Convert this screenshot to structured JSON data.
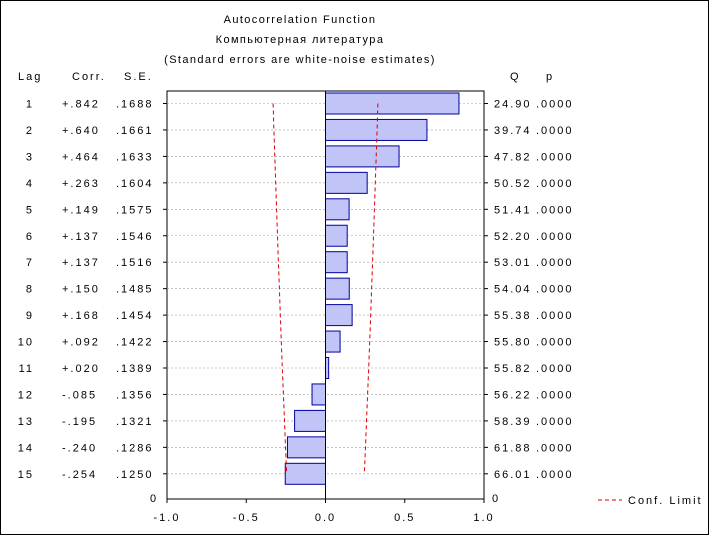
{
  "chart_data": {
    "type": "bar",
    "orientation": "horizontal",
    "title": "Autocorrelation Function",
    "subtitle": "Компьютерная литература",
    "note": "(Standard errors are white-noise estimates)",
    "headers": {
      "lag": "Lag",
      "corr": "Corr.",
      "se": "S.E.",
      "q": "Q",
      "p": "p"
    },
    "rows": [
      {
        "lag": "1",
        "corr": "+.842",
        "se": ".1688",
        "q": "24.90",
        "p": ".0000"
      },
      {
        "lag": "2",
        "corr": "+.640",
        "se": ".1661",
        "q": "39.74",
        "p": ".0000"
      },
      {
        "lag": "3",
        "corr": "+.464",
        "se": ".1633",
        "q": "47.82",
        "p": ".0000"
      },
      {
        "lag": "4",
        "corr": "+.263",
        "se": ".1604",
        "q": "50.52",
        "p": ".0000"
      },
      {
        "lag": "5",
        "corr": "+.149",
        "se": ".1575",
        "q": "51.41",
        "p": ".0000"
      },
      {
        "lag": "6",
        "corr": "+.137",
        "se": ".1546",
        "q": "52.20",
        "p": ".0000"
      },
      {
        "lag": "7",
        "corr": "+.137",
        "se": ".1516",
        "q": "53.01",
        "p": ".0000"
      },
      {
        "lag": "8",
        "corr": "+.150",
        "se": ".1485",
        "q": "54.04",
        "p": ".0000"
      },
      {
        "lag": "9",
        "corr": "+.168",
        "se": ".1454",
        "q": "55.38",
        "p": ".0000"
      },
      {
        "lag": "10",
        "corr": "+.092",
        "se": ".1422",
        "q": "55.80",
        "p": ".0000"
      },
      {
        "lag": "11",
        "corr": "+.020",
        "se": ".1389",
        "q": "55.82",
        "p": ".0000"
      },
      {
        "lag": "12",
        "corr": "-.085",
        "se": ".1356",
        "q": "56.22",
        "p": ".0000"
      },
      {
        "lag": "13",
        "corr": "-.195",
        "se": ".1321",
        "q": "58.39",
        "p": ".0000"
      },
      {
        "lag": "14",
        "corr": "-.240",
        "se": ".1286",
        "q": "61.88",
        "p": ".0000"
      },
      {
        "lag": "15",
        "corr": "-.254",
        "se": ".1250",
        "q": "66.01",
        "p": ".0000"
      }
    ],
    "values": [
      0.842,
      0.64,
      0.464,
      0.263,
      0.149,
      0.137,
      0.137,
      0.15,
      0.168,
      0.092,
      0.02,
      -0.085,
      -0.195,
      -0.24,
      -0.254
    ],
    "conf_limit_multiplier": 1.96,
    "zero_row_label": "0",
    "xlim": [
      -1.0,
      1.0
    ],
    "xticks": [
      "-1.0",
      "-0.5",
      "0.0",
      "0.5",
      "1.0"
    ],
    "legend": {
      "label": "Conf. Limit",
      "placement": "bottom-right"
    },
    "grid": true,
    "colors": {
      "bar_fill": "#c0c4f6",
      "bar_stroke": "#0000a0",
      "conf_limit": "#e00000",
      "grid": "#a0a0a0"
    }
  }
}
